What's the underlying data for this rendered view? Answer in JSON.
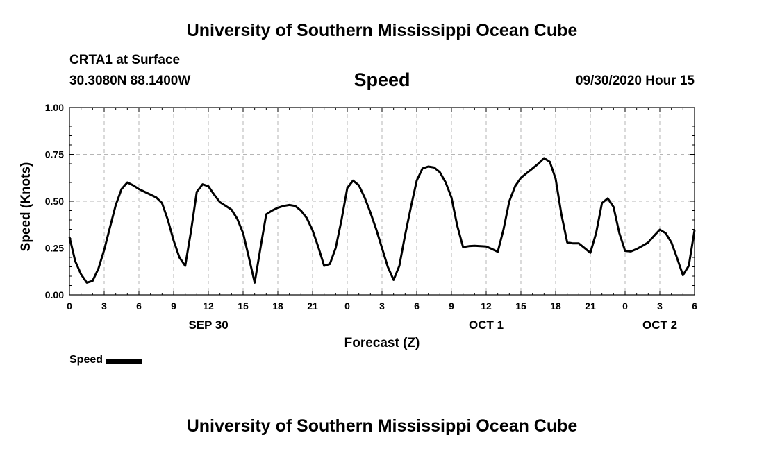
{
  "page": {
    "top_title": "University of Southern Mississippi Ocean Cube",
    "bottom_title": "University of Southern Mississippi Ocean Cube",
    "station": "CRTA1 at Surface",
    "coords": "30.3080N 88.1400W",
    "variable_title": "Speed",
    "timestamp": "09/30/2020 Hour 15"
  },
  "legend": {
    "label": "Speed"
  },
  "chart_data": {
    "type": "line",
    "title": "Speed",
    "xlabel": "Forecast (Z)",
    "ylabel": "Speed (Knots)",
    "xlim": [
      0,
      54
    ],
    "ylim": [
      0,
      1
    ],
    "grid": true,
    "x_tick_values": [
      0,
      3,
      6,
      9,
      12,
      15,
      18,
      21,
      24,
      27,
      30,
      33,
      36,
      39,
      42,
      45,
      48,
      51,
      54
    ],
    "x_tick_labels": [
      "0",
      "3",
      "6",
      "9",
      "12",
      "15",
      "18",
      "21",
      "0",
      "3",
      "6",
      "9",
      "12",
      "15",
      "18",
      "21",
      "0",
      "3",
      "6"
    ],
    "y_tick_values": [
      0,
      0.25,
      0.5,
      0.75,
      1.0
    ],
    "y_tick_labels": [
      "0.00",
      "0.25",
      "0.50",
      "0.75",
      "1.00"
    ],
    "day_labels": [
      {
        "x": 12,
        "label": "SEP 30"
      },
      {
        "x": 36,
        "label": "OCT 1"
      },
      {
        "x": 51,
        "label": "OCT 2"
      }
    ],
    "series": [
      {
        "name": "Speed",
        "color": "#000000",
        "x": [
          0,
          0.5,
          1,
          1.5,
          2,
          2.5,
          3,
          3.5,
          4,
          4.5,
          5,
          5.5,
          6,
          6.5,
          7,
          7.5,
          8,
          8.5,
          9,
          9.5,
          10,
          10.5,
          11,
          11.5,
          12,
          12.5,
          13,
          13.5,
          14,
          14.5,
          15,
          15.5,
          16,
          16.5,
          17,
          17.5,
          18,
          18.5,
          19,
          19.5,
          20,
          20.5,
          21,
          21.5,
          22,
          22.5,
          23,
          23.5,
          24,
          24.5,
          25,
          25.5,
          26,
          26.5,
          27,
          27.5,
          28,
          28.5,
          29,
          29.5,
          30,
          30.5,
          31,
          31.5,
          32,
          32.5,
          33,
          33.5,
          34,
          34.5,
          35,
          35.5,
          36,
          36.5,
          37,
          37.5,
          38,
          38.5,
          39,
          39.5,
          40,
          40.5,
          41,
          41.5,
          42,
          42.5,
          43,
          43.5,
          44,
          44.5,
          45,
          45.5,
          46,
          46.5,
          47,
          47.5,
          48,
          48.5,
          49,
          49.5,
          50,
          50.5,
          51,
          51.5,
          52,
          52.5,
          53,
          53.5,
          54
        ],
        "values": [
          0.31,
          0.18,
          0.11,
          0.065,
          0.075,
          0.14,
          0.24,
          0.36,
          0.48,
          0.565,
          0.6,
          0.585,
          0.565,
          0.55,
          0.535,
          0.52,
          0.49,
          0.4,
          0.29,
          0.2,
          0.155,
          0.34,
          0.55,
          0.59,
          0.58,
          0.535,
          0.495,
          0.475,
          0.455,
          0.405,
          0.33,
          0.2,
          0.065,
          0.25,
          0.43,
          0.45,
          0.465,
          0.475,
          0.48,
          0.475,
          0.45,
          0.41,
          0.345,
          0.255,
          0.155,
          0.165,
          0.25,
          0.4,
          0.57,
          0.61,
          0.585,
          0.52,
          0.44,
          0.35,
          0.25,
          0.15,
          0.08,
          0.155,
          0.32,
          0.47,
          0.61,
          0.675,
          0.685,
          0.68,
          0.655,
          0.6,
          0.52,
          0.37,
          0.255,
          0.26,
          0.262,
          0.26,
          0.258,
          0.245,
          0.23,
          0.35,
          0.5,
          0.58,
          0.625,
          0.65,
          0.675,
          0.7,
          0.73,
          0.71,
          0.62,
          0.43,
          0.28,
          0.275,
          0.275,
          0.25,
          0.225,
          0.33,
          0.49,
          0.515,
          0.47,
          0.33,
          0.235,
          0.232,
          0.245,
          0.262,
          0.28,
          0.315,
          0.348,
          0.33,
          0.28,
          0.195,
          0.105,
          0.155,
          0.345
        ]
      }
    ]
  }
}
